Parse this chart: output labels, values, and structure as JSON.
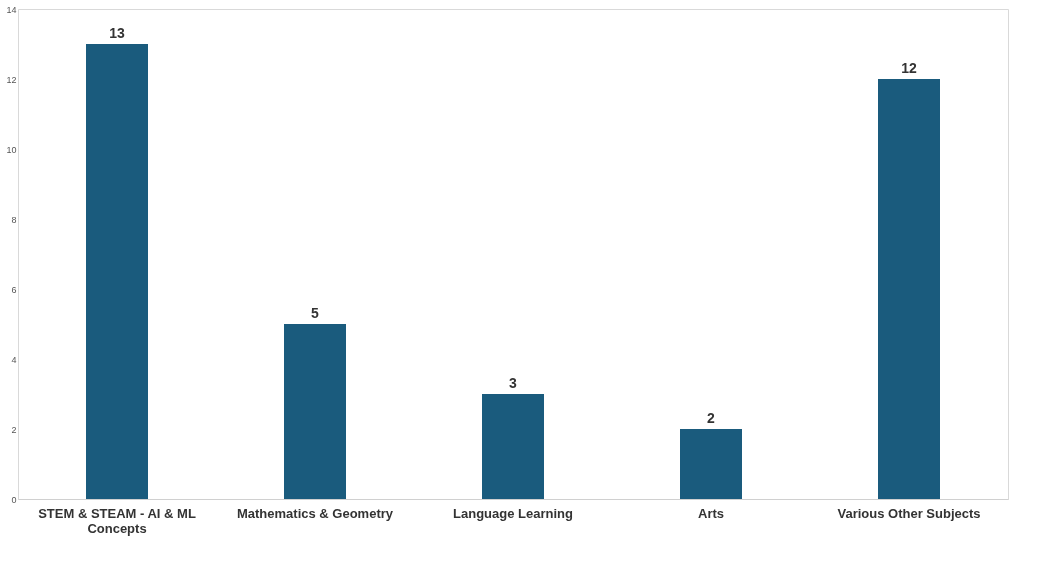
{
  "chart_data": {
    "type": "bar",
    "categories": [
      "STEM & STEAM - AI & ML Concepts",
      "Mathematics & Geometry",
      "Language Learning",
      "Arts",
      "Various Other Subjects"
    ],
    "values": [
      13,
      5,
      3,
      2,
      12
    ],
    "color": "#1a5b7d",
    "ylim": [
      0,
      14
    ],
    "yticks": [
      0,
      2,
      4,
      6,
      8,
      10,
      12,
      14
    ],
    "grid": false,
    "data_labels": true
  }
}
